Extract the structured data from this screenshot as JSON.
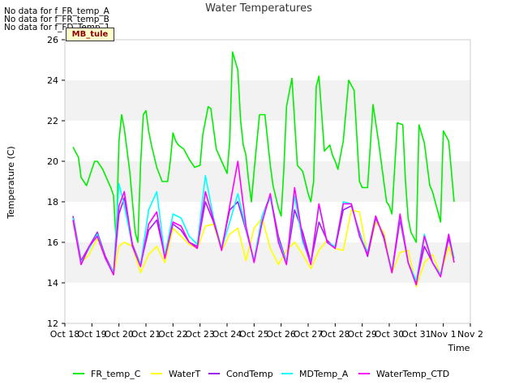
{
  "chart_data": {
    "type": "line",
    "title": "Water Temperatures",
    "xlabel": "Time",
    "ylabel": "Temperature (C)",
    "ylim": [
      12,
      26
    ],
    "yticks": [
      12,
      14,
      16,
      18,
      20,
      22,
      24,
      26
    ],
    "xlim": [
      0,
      15
    ],
    "xtick_labels": [
      "Oct 18",
      "Oct 19",
      "Oct 20",
      "Oct 21",
      "Oct 22",
      "Oct 23",
      "Oct 24",
      "Oct 25",
      "Oct 26",
      "Oct 27",
      "Oct 28",
      "Oct 29",
      "Oct 30",
      "Oct 31",
      "Nov 1",
      "Nov 2"
    ],
    "grid": "horizontal bands",
    "legend_position": "bottom",
    "no_data_notes": [
      "No data for f_FR_temp_A",
      "No data for f_FR_temp_B",
      "No data for f_FD_Temp_1"
    ],
    "badge": "MB_tule",
    "series": [
      {
        "name": "FR_temp_C",
        "color": "#00ee00",
        "x": [
          0.3,
          0.5,
          0.6,
          0.8,
          1.0,
          1.1,
          1.2,
          1.4,
          1.6,
          1.7,
          1.8,
          1.9,
          2.0,
          2.1,
          2.2,
          2.4,
          2.6,
          2.7,
          2.8,
          2.9,
          3.0,
          3.1,
          3.2,
          3.4,
          3.6,
          3.8,
          3.9,
          4.0,
          4.1,
          4.2,
          4.4,
          4.6,
          4.8,
          5.0,
          5.1,
          5.3,
          5.4,
          5.6,
          5.8,
          5.9,
          6.0,
          6.1,
          6.2,
          6.4,
          6.5,
          6.6,
          6.7,
          6.8,
          6.9,
          7.0,
          7.2,
          7.4,
          7.6,
          7.7,
          7.9,
          8.0,
          8.1,
          8.2,
          8.4,
          8.6,
          8.8,
          9.0,
          9.1,
          9.2,
          9.3,
          9.4,
          9.6,
          9.8,
          9.9,
          10.0,
          10.1,
          10.3,
          10.5,
          10.7,
          10.9,
          11.0,
          11.2,
          11.4,
          11.6,
          11.8,
          11.9,
          12.0,
          12.1,
          12.3,
          12.5,
          12.6,
          12.7,
          12.8,
          13.0,
          13.1,
          13.3,
          13.5,
          13.6,
          13.8,
          13.9,
          14.0,
          14.2,
          14.4
        ],
        "y": [
          20.7,
          20.2,
          19.2,
          18.8,
          19.6,
          20.0,
          20.0,
          19.6,
          19.0,
          18.7,
          18.3,
          16.0,
          21.0,
          22.3,
          21.6,
          19.5,
          16.5,
          16.0,
          19.8,
          22.3,
          22.5,
          21.5,
          20.8,
          19.7,
          19.0,
          19.0,
          20.0,
          21.4,
          21.0,
          20.8,
          20.6,
          20.1,
          19.7,
          19.8,
          21.3,
          22.7,
          22.6,
          20.6,
          20.0,
          19.7,
          19.4,
          21.0,
          25.4,
          24.5,
          22.0,
          20.8,
          20.3,
          19.0,
          18.0,
          19.5,
          22.3,
          22.3,
          19.8,
          18.8,
          17.7,
          17.3,
          19.6,
          22.7,
          24.1,
          19.8,
          19.5,
          18.4,
          18.0,
          19.0,
          23.7,
          24.2,
          20.5,
          20.8,
          20.3,
          20.0,
          19.6,
          21.0,
          24.0,
          23.5,
          19.0,
          18.7,
          18.7,
          22.8,
          21.0,
          19.0,
          18.0,
          17.8,
          17.4,
          21.9,
          21.8,
          19.0,
          17.2,
          16.5,
          16.0,
          21.8,
          20.9,
          18.8,
          18.5,
          17.5,
          17.0,
          21.5,
          21.0,
          18.0
        ]
      },
      {
        "name": "WaterT",
        "color": "#ffff00",
        "x": [
          0.3,
          0.6,
          0.9,
          1.2,
          1.5,
          1.8,
          2.0,
          2.2,
          2.5,
          2.8,
          3.1,
          3.4,
          3.7,
          4.0,
          4.3,
          4.6,
          4.9,
          5.2,
          5.5,
          5.8,
          6.1,
          6.4,
          6.7,
          7.0,
          7.3,
          7.6,
          7.9,
          8.2,
          8.5,
          8.8,
          9.1,
          9.4,
          9.7,
          10.0,
          10.3,
          10.6,
          10.9,
          11.2,
          11.5,
          11.8,
          12.1,
          12.4,
          12.7,
          13.0,
          13.3,
          13.6,
          13.9,
          14.2,
          14.4
        ],
        "y": [
          17.0,
          15.0,
          15.4,
          16.2,
          15.2,
          14.4,
          15.8,
          16.0,
          15.8,
          14.5,
          15.4,
          15.8,
          15.0,
          16.7,
          16.3,
          15.9,
          15.7,
          16.8,
          16.9,
          15.6,
          16.4,
          16.7,
          15.1,
          16.7,
          17.2,
          15.7,
          14.9,
          15.6,
          16.0,
          15.4,
          14.7,
          15.6,
          16.1,
          15.7,
          15.6,
          17.6,
          17.5,
          15.3,
          17.0,
          16.5,
          14.5,
          15.5,
          15.6,
          13.8,
          15.0,
          15.4,
          14.4,
          15.8,
          15.0
        ]
      },
      {
        "name": "CondTemp",
        "color": "#a020f0",
        "x": [
          0.3,
          0.6,
          0.9,
          1.2,
          1.5,
          1.8,
          2.0,
          2.2,
          2.5,
          2.8,
          3.1,
          3.4,
          3.7,
          4.0,
          4.3,
          4.6,
          4.9,
          5.2,
          5.5,
          5.8,
          6.1,
          6.4,
          6.7,
          7.0,
          7.3,
          7.6,
          7.9,
          8.2,
          8.5,
          8.8,
          9.1,
          9.4,
          9.7,
          10.0,
          10.3,
          10.6,
          10.9,
          11.2,
          11.5,
          11.8,
          12.1,
          12.4,
          12.7,
          13.0,
          13.3,
          13.6,
          13.9,
          14.2,
          14.4
        ],
        "y": [
          17.3,
          15.1,
          15.8,
          16.5,
          15.3,
          14.5,
          17.4,
          18.2,
          15.9,
          14.9,
          16.6,
          17.1,
          15.3,
          16.9,
          16.6,
          16.0,
          15.8,
          18.0,
          17.0,
          15.7,
          17.6,
          18.0,
          16.6,
          15.1,
          17.3,
          18.3,
          16.3,
          15.0,
          17.6,
          16.5,
          15.0,
          17.0,
          16.1,
          15.7,
          17.6,
          17.8,
          16.5,
          15.3,
          17.2,
          16.3,
          14.5,
          17.1,
          15.0,
          14.0,
          15.8,
          15.0,
          14.4,
          16.2,
          15.2
        ]
      },
      {
        "name": "MDTemp_A",
        "color": "#00ffff",
        "x": [
          0.3,
          0.6,
          0.9,
          1.2,
          1.5,
          1.8,
          2.0,
          2.2,
          2.5,
          2.8,
          3.1,
          3.4,
          3.7,
          4.0,
          4.3,
          4.6,
          4.9,
          5.2,
          5.5,
          5.8,
          6.1,
          6.4,
          6.7,
          7.0,
          7.3,
          7.6,
          7.9,
          8.2,
          8.5,
          8.8,
          9.1,
          9.4,
          9.7,
          10.0,
          10.3,
          10.6,
          10.9,
          11.2,
          11.5,
          11.8,
          12.1,
          12.4,
          12.7,
          13.0,
          13.3,
          13.6,
          13.9,
          14.2,
          14.4
        ],
        "y": [
          17.2,
          15.0,
          15.7,
          16.4,
          15.2,
          14.5,
          18.9,
          17.8,
          15.8,
          14.9,
          17.6,
          18.5,
          15.3,
          17.4,
          17.2,
          16.3,
          15.9,
          19.3,
          17.2,
          15.7,
          17.0,
          18.4,
          16.7,
          15.1,
          17.3,
          18.2,
          16.1,
          15.0,
          18.3,
          16.0,
          15.0,
          17.8,
          16.0,
          15.8,
          18.0,
          17.9,
          16.4,
          15.5,
          17.3,
          16.2,
          14.6,
          17.3,
          15.0,
          14.1,
          16.4,
          15.0,
          14.4,
          16.4,
          15.2
        ]
      },
      {
        "name": "WaterTemp_CTD",
        "color": "#ff00ff",
        "x": [
          0.3,
          0.6,
          0.9,
          1.2,
          1.5,
          1.8,
          2.0,
          2.2,
          2.5,
          2.8,
          3.1,
          3.4,
          3.7,
          4.0,
          4.3,
          4.6,
          4.9,
          5.2,
          5.5,
          5.8,
          6.1,
          6.4,
          6.7,
          7.0,
          7.3,
          7.6,
          7.9,
          8.2,
          8.5,
          8.8,
          9.1,
          9.4,
          9.7,
          10.0,
          10.3,
          10.6,
          10.9,
          11.2,
          11.5,
          11.8,
          12.1,
          12.4,
          12.7,
          13.0,
          13.3,
          13.6,
          13.9,
          14.2,
          14.4
        ],
        "y": [
          17.1,
          14.9,
          15.8,
          16.3,
          15.2,
          14.4,
          17.8,
          18.5,
          15.8,
          14.8,
          16.9,
          17.5,
          15.2,
          17.0,
          16.8,
          16.0,
          15.7,
          18.5,
          17.1,
          15.6,
          17.8,
          20.0,
          16.8,
          15.0,
          17.0,
          18.4,
          16.0,
          14.9,
          18.7,
          16.2,
          14.9,
          17.9,
          16.0,
          15.7,
          17.9,
          17.9,
          16.3,
          15.4,
          17.3,
          16.2,
          14.5,
          17.4,
          15.0,
          13.9,
          16.3,
          15.0,
          14.3,
          16.4,
          15.0
        ]
      }
    ]
  }
}
